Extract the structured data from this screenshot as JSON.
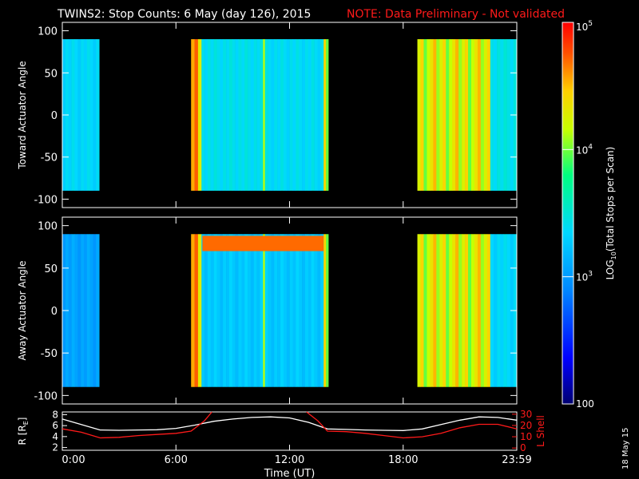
{
  "header": {
    "title": "TWINS2: Stop Counts:  6 May (day 126), 2015",
    "note": "NOTE: Data Preliminary - Not validated",
    "note_color": "#ff1a1a"
  },
  "footer": {
    "date_stamp": "18 May 15"
  },
  "colors": {
    "background": "#000000",
    "axis": "#ffffff",
    "orbit_line": "#ffffff",
    "lshell_line": "#ff1a1a"
  },
  "chart_data": [
    {
      "type": "heatmap",
      "panel": "toward",
      "ylabel": "Toward Actuator Angle",
      "xlim": [
        0,
        24
      ],
      "ylim": [
        -110,
        110
      ],
      "yticks": [
        -100,
        -50,
        0,
        50,
        100
      ],
      "angle_range": [
        -90,
        90
      ],
      "data_intervals_hours": [
        [
          0.0,
          1.95
        ],
        [
          6.8,
          14.05
        ],
        [
          18.75,
          24.0
        ]
      ],
      "intensity_profile": [
        {
          "start": 0.0,
          "end": 1.95,
          "level": 0.45
        },
        {
          "start": 6.8,
          "end": 7.35,
          "level": 0.82
        },
        {
          "start": 7.35,
          "end": 10.6,
          "level": 0.47
        },
        {
          "start": 10.6,
          "end": 10.7,
          "level": 0.7
        },
        {
          "start": 10.7,
          "end": 13.8,
          "level": 0.46
        },
        {
          "start": 13.8,
          "end": 14.05,
          "level": 0.72
        },
        {
          "start": 18.75,
          "end": 22.6,
          "level": 0.75
        },
        {
          "start": 22.6,
          "end": 24.0,
          "level": 0.48
        }
      ]
    },
    {
      "type": "heatmap",
      "panel": "away",
      "ylabel": "Away Actuator Angle",
      "xlim": [
        0,
        24
      ],
      "ylim": [
        -110,
        110
      ],
      "yticks": [
        -100,
        -50,
        0,
        50,
        100
      ],
      "angle_range": [
        -90,
        90
      ],
      "data_intervals_hours": [
        [
          0.0,
          1.95
        ],
        [
          6.8,
          14.05
        ],
        [
          18.75,
          24.0
        ]
      ],
      "intensity_profile": [
        {
          "start": 0.0,
          "end": 1.95,
          "level": 0.35
        },
        {
          "start": 6.8,
          "end": 7.35,
          "level": 0.82
        },
        {
          "start": 7.35,
          "end": 10.6,
          "level": 0.42
        },
        {
          "start": 10.6,
          "end": 10.7,
          "level": 0.7
        },
        {
          "start": 10.7,
          "end": 13.8,
          "level": 0.42
        },
        {
          "start": 13.8,
          "end": 14.05,
          "level": 0.72
        },
        {
          "start": 18.75,
          "end": 22.6,
          "level": 0.75
        },
        {
          "start": 22.6,
          "end": 24.0,
          "level": 0.45
        }
      ],
      "high_band_angle": [
        70,
        88
      ],
      "high_band_hours": [
        7.4,
        13.8
      ]
    },
    {
      "type": "line",
      "panel": "orbit",
      "xlabel": "Time (UT)",
      "ylabel": "R [R",
      "ylabel_sub": "E",
      "ylabel_close": "]",
      "y2label": "L Shell",
      "xlim": [
        0,
        24
      ],
      "xticks": [
        0,
        6,
        12,
        18,
        24
      ],
      "xticklabels": [
        "0:00",
        "6:00",
        "12:00",
        "18:00",
        "23:59"
      ],
      "ylim": [
        1.5,
        8.5
      ],
      "yticks": [
        2,
        4,
        6,
        8
      ],
      "y2lim": [
        -2,
        32
      ],
      "y2ticks": [
        0,
        10,
        20,
        30
      ],
      "series": [
        {
          "x": [
            0,
            1,
            2,
            3,
            4,
            5,
            6,
            7,
            8,
            9,
            10,
            11,
            12,
            13,
            14,
            15,
            16,
            17,
            18,
            19,
            20,
            21,
            22,
            23,
            24
          ],
          "values": [
            7.2,
            6.2,
            5.2,
            5.15,
            5.2,
            5.25,
            5.5,
            6.1,
            6.8,
            7.2,
            7.5,
            7.6,
            7.4,
            6.6,
            5.4,
            5.3,
            5.2,
            5.15,
            5.1,
            5.4,
            6.2,
            7.0,
            7.6,
            7.5,
            7.0
          ]
        },
        {
          "axis": "right",
          "x": [
            0,
            1,
            2,
            3,
            4,
            5,
            6,
            6.8,
            7.5,
            7.9
          ],
          "values": [
            17,
            14,
            9,
            9.5,
            11,
            12,
            13,
            15,
            24,
            32
          ]
        },
        {
          "axis": "right",
          "x": [
            12.9,
            13.5,
            14.0,
            15,
            16,
            17,
            18,
            19,
            20,
            21,
            22,
            23,
            24
          ],
          "values": [
            32,
            24,
            15,
            14.5,
            13,
            11,
            9,
            10,
            13,
            18,
            21,
            21,
            17
          ]
        }
      ]
    },
    {
      "type": "heatmap",
      "panel": "colorbar",
      "ylabel": "LOG",
      "ylabel_sub": "10",
      "ylabel_rest": "(Total Stops per Scan)",
      "scale": "log",
      "ylim": [
        100,
        100000
      ],
      "tick_values": [
        100,
        1000,
        10000,
        100000
      ],
      "ticklabels": [
        "100",
        "10",
        "10",
        "10"
      ],
      "tick_exponents": [
        "",
        "3",
        "4",
        "5"
      ]
    }
  ]
}
